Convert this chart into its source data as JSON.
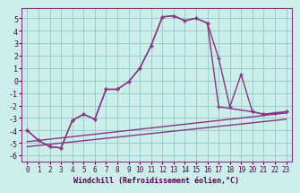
{
  "xlabel": "Windchill (Refroidissement éolien,°C)",
  "bg_color": "#cceee8",
  "grid_color": "#99cccc",
  "line_color": "#883388",
  "xlim": [
    -0.5,
    23.5
  ],
  "ylim": [
    -6.5,
    5.8
  ],
  "xtick_vals": [
    0,
    1,
    2,
    3,
    4,
    5,
    6,
    7,
    8,
    9,
    10,
    11,
    12,
    13,
    14,
    15,
    16,
    17,
    18,
    19,
    20,
    21,
    22,
    23
  ],
  "ytick_vals": [
    -6,
    -5,
    -4,
    -3,
    -2,
    -1,
    0,
    1,
    2,
    3,
    4,
    5
  ],
  "series1_x": [
    0,
    1,
    2,
    3,
    4,
    5,
    6,
    7,
    8,
    9,
    10,
    11,
    12,
    13,
    14,
    15,
    16,
    17,
    18,
    19,
    20,
    21,
    22,
    23
  ],
  "series1_y": [
    -4.0,
    -4.8,
    -5.3,
    -5.4,
    -3.2,
    -2.7,
    -3.1,
    -0.7,
    -0.7,
    -0.1,
    1.0,
    2.8,
    5.1,
    5.2,
    4.8,
    5.0,
    4.6,
    1.8,
    -2.1,
    0.5,
    -2.5,
    -2.7,
    -2.6,
    -2.5
  ],
  "series2_x": [
    0,
    1,
    2,
    3,
    4,
    5,
    6,
    7,
    8,
    9,
    10,
    11,
    12,
    13,
    14,
    15,
    16,
    17,
    20,
    21,
    22,
    23
  ],
  "series2_y": [
    -4.0,
    -4.8,
    -5.3,
    -5.4,
    -3.2,
    -2.7,
    -3.1,
    -0.7,
    -0.7,
    -0.1,
    1.0,
    2.8,
    5.1,
    5.2,
    4.8,
    5.0,
    4.6,
    -2.1,
    -2.5,
    -2.7,
    -2.6,
    -2.5
  ],
  "series3_x": [
    0,
    23
  ],
  "series3_y": [
    -4.9,
    -2.6
  ],
  "series4_x": [
    0,
    23
  ],
  "series4_y": [
    -5.3,
    -3.1
  ],
  "xlabel_fontsize": 6,
  "tick_fontsize": 5.5
}
